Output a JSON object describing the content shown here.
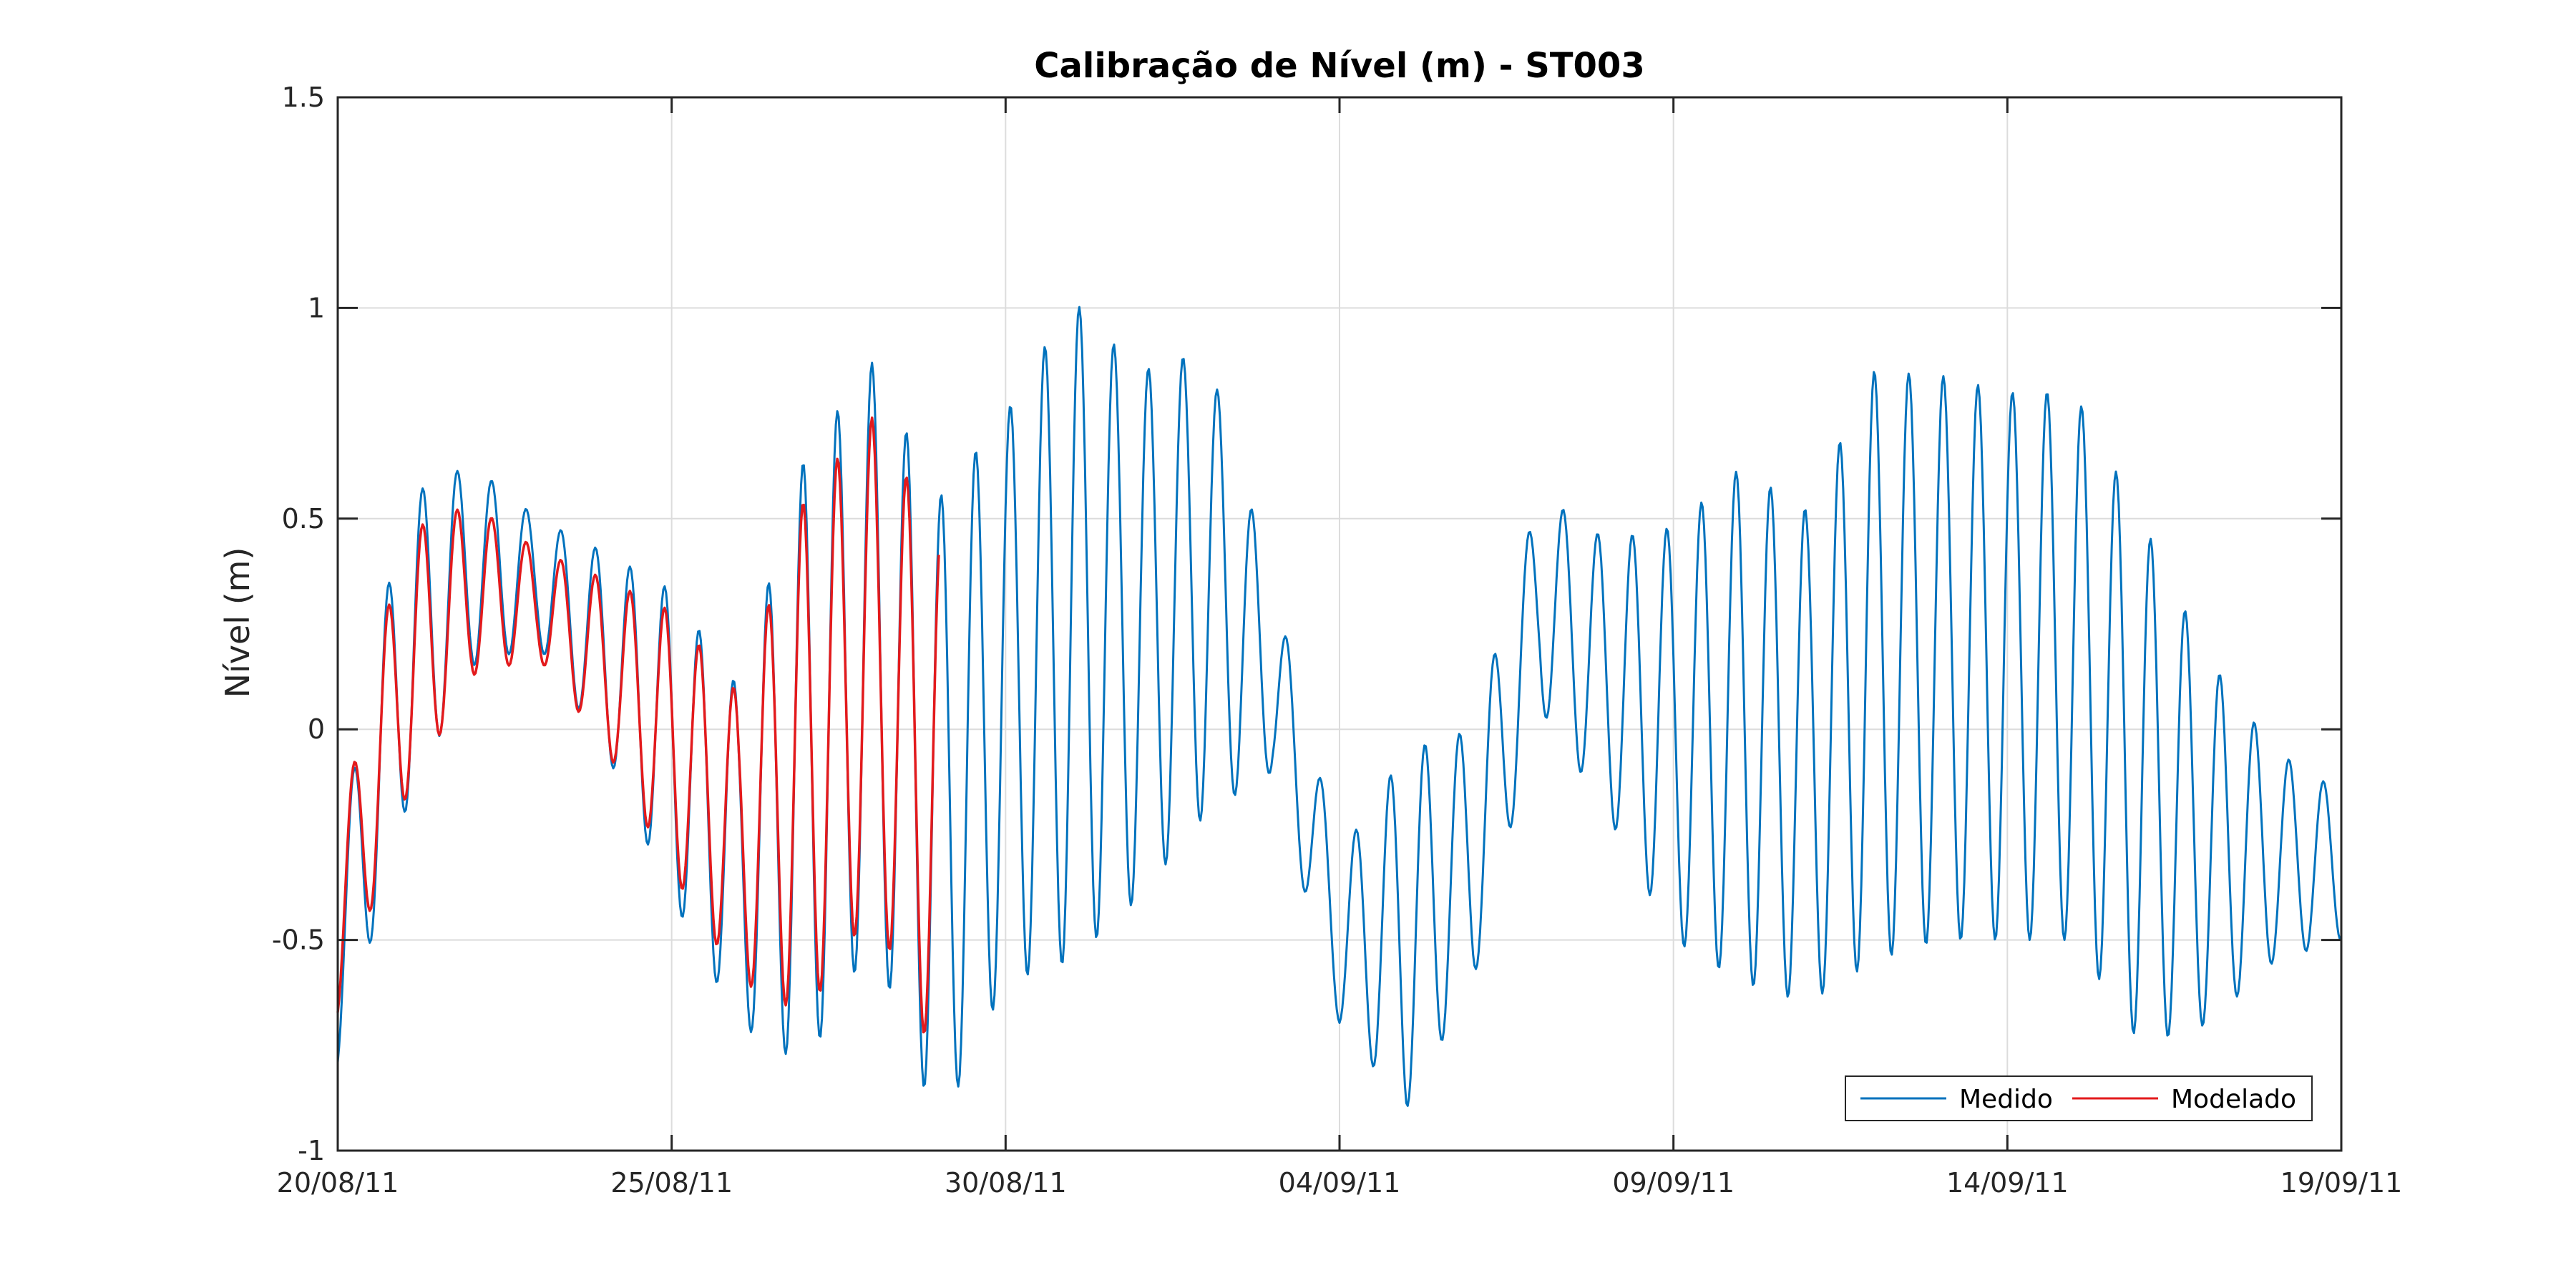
{
  "chart_data": {
    "type": "line",
    "title": "Calibração de Nível (m) - ST003",
    "xlabel": "",
    "ylabel": "Nível (m)",
    "xlim": [
      "20/08/11",
      "19/09/11"
    ],
    "ylim": [
      -1,
      1.5
    ],
    "x_ticks": [
      "20/08/11",
      "25/08/11",
      "30/08/11",
      "04/09/11",
      "09/09/11",
      "14/09/11",
      "19/09/11"
    ],
    "y_ticks": [
      "-1",
      "-0.5",
      "0",
      "0.5",
      "1",
      "1.5"
    ],
    "grid": true,
    "legend_position": "bottom-right",
    "series": [
      {
        "name": "Medido",
        "color": "#0072bd",
        "x": [
          "20/08/11",
          "21/08/11",
          "22/08/11",
          "23/08/11",
          "24/08/11",
          "25/08/11",
          "26/08/11",
          "27/08/11",
          "28/08/11",
          "29/08/11",
          "30/08/11",
          "31/08/11",
          "01/09/11",
          "02/09/11",
          "03/09/11",
          "04/09/11",
          "05/09/11",
          "06/09/11",
          "07/09/11",
          "08/09/11",
          "09/09/11",
          "10/09/11",
          "11/09/11",
          "12/09/11",
          "13/09/11",
          "14/09/11",
          "15/09/11",
          "16/09/11",
          "17/09/11",
          "18/09/11",
          "19/09/11"
        ],
        "range_min": [
          -0.8,
          -0.2,
          0.15,
          0.2,
          -0.05,
          -0.4,
          -0.7,
          -0.8,
          -0.5,
          -0.95,
          -0.6,
          -0.55,
          -0.4,
          -0.2,
          -0.1,
          -0.7,
          -0.9,
          -0.6,
          0.05,
          -0.2,
          -0.5,
          -0.6,
          -0.65,
          -0.55,
          -0.5,
          -0.5,
          -0.5,
          -0.75,
          -0.7,
          -0.55,
          -0.5
        ],
        "range_max": [
          -0.3,
          0.55,
          0.63,
          0.5,
          0.42,
          0.33,
          0.1,
          0.65,
          0.87,
          0.55,
          0.75,
          1.02,
          0.85,
          0.9,
          0.35,
          -0.3,
          -0.05,
          0.0,
          0.56,
          0.45,
          0.48,
          0.62,
          0.52,
          0.85,
          0.84,
          0.8,
          0.8,
          0.5,
          0.17,
          -0.05,
          -0.15
        ],
        "values": [
          -0.78,
          -0.12,
          0.22,
          0.4,
          0.58,
          0.38,
          0.3,
          0.45,
          0.25,
          -0.4,
          0.33,
          0.28,
          0.05,
          0.1,
          0.2,
          -0.05,
          -0.7,
          0.0,
          0.2,
          -0.6,
          0.05,
          0.6,
          -0.4,
          0.5,
          0.85,
          -0.2,
          0.5,
          -0.8,
          0.2,
          -0.5,
          -0.45
        ]
      },
      {
        "name": "Modelado",
        "color": "#e31a1c",
        "x": [
          "20/08/11",
          "21/08/11",
          "22/08/11",
          "23/08/11",
          "24/08/11",
          "25/08/11",
          "26/08/11",
          "27/08/11",
          "28/08/11",
          "29/08/11"
        ],
        "values": [
          -0.45,
          0.05,
          0.52,
          0.38,
          0.32,
          -0.2,
          0.32,
          -0.5,
          0.6,
          -0.85
        ]
      }
    ]
  }
}
